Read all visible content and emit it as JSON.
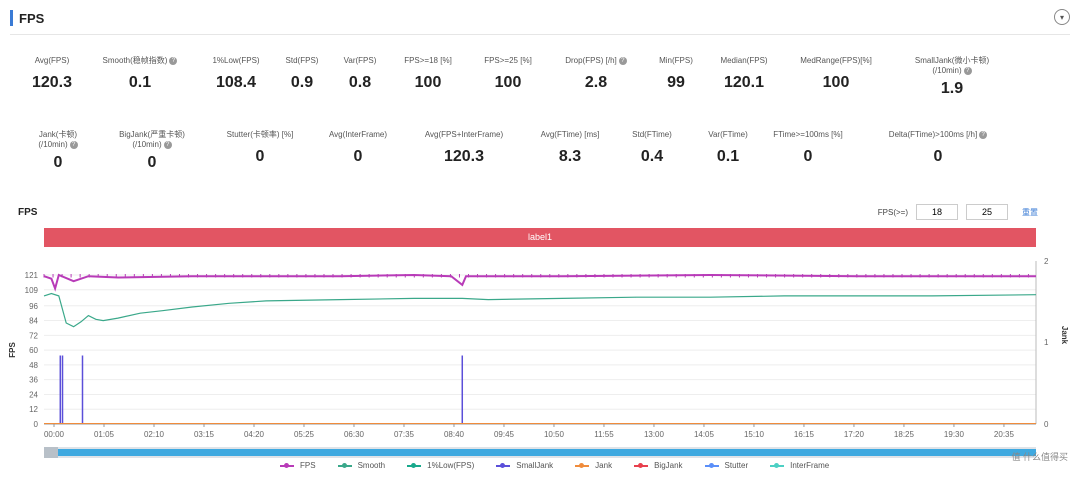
{
  "header": {
    "title": "FPS"
  },
  "stats_row1": [
    {
      "label": "Avg(FPS)",
      "value": "120.3",
      "help": false
    },
    {
      "label": "Smooth(稳帧指数)",
      "value": "0.1",
      "help": true
    },
    {
      "label": "1%Low(FPS)",
      "value": "108.4",
      "help": false
    },
    {
      "label": "Std(FPS)",
      "value": "0.9",
      "help": false
    },
    {
      "label": "Var(FPS)",
      "value": "0.8",
      "help": false
    },
    {
      "label": "FPS>=18 [%]",
      "value": "100",
      "help": false
    },
    {
      "label": "FPS>=25 [%]",
      "value": "100",
      "help": false
    },
    {
      "label": "Drop(FPS) [/h]",
      "value": "2.8",
      "help": true
    },
    {
      "label": "Min(FPS)",
      "value": "99",
      "help": false
    },
    {
      "label": "Median(FPS)",
      "value": "120.1",
      "help": false
    },
    {
      "label": "MedRange(FPS)[%]",
      "value": "100",
      "help": false
    },
    {
      "label": "SmallJank(微小卡顿)",
      "label2": "(/10min)",
      "value": "1.9",
      "help": true
    }
  ],
  "stats_row2": [
    {
      "label": "Jank(卡顿)",
      "label2": "(/10min)",
      "value": "0",
      "help": true
    },
    {
      "label": "BigJank(严重卡顿)",
      "label2": "(/10min)",
      "value": "0",
      "help": true
    },
    {
      "label": "Stutter(卡顿率) [%]",
      "value": "0",
      "help": false
    },
    {
      "label": "Avg(InterFrame)",
      "value": "0",
      "help": false
    },
    {
      "label": "Avg(FPS+InterFrame)",
      "value": "120.3",
      "help": false
    },
    {
      "label": "Avg(FTime) [ms]",
      "value": "8.3",
      "help": false
    },
    {
      "label": "Std(FTime)",
      "value": "0.4",
      "help": false
    },
    {
      "label": "Var(FTime)",
      "value": "0.1",
      "help": false
    },
    {
      "label": "FTime>=100ms [%]",
      "value": "0",
      "help": false
    },
    {
      "label": "Delta(FTime)>100ms [/h]",
      "value": "0",
      "help": true
    }
  ],
  "chart_controls": {
    "title": "FPS",
    "threshold_label": "FPS(>=)",
    "threshold1": "18",
    "threshold2": "25",
    "reset_label": "重置"
  },
  "chart_label_band": "label1",
  "brand": "值 什么值得买",
  "chart_data": {
    "type": "line",
    "title": "FPS",
    "ylabel": "FPS",
    "y2label": "Jank",
    "ylim": [
      0,
      121
    ],
    "y2lim": [
      0,
      2
    ],
    "yticks": [
      "0",
      "12",
      "24",
      "36",
      "48",
      "60",
      "72",
      "84",
      "96",
      "109",
      "121"
    ],
    "y2ticks": [
      "0",
      "1",
      "2"
    ],
    "xticks": [
      "00:00",
      "01:05",
      "02:10",
      "03:15",
      "04:20",
      "05:25",
      "06:30",
      "07:35",
      "08:40",
      "09:45",
      "10:50",
      "11:55",
      "13:00",
      "14:05",
      "15:10",
      "16:15",
      "17:20",
      "18:25",
      "19:30",
      "20:35"
    ],
    "x_range_s": [
      0,
      1340
    ],
    "series": [
      {
        "name": "FPS",
        "color": "#b83bb8",
        "points": [
          [
            0,
            120
          ],
          [
            10,
            118
          ],
          [
            15,
            110
          ],
          [
            20,
            121
          ],
          [
            40,
            116
          ],
          [
            60,
            120
          ],
          [
            100,
            119
          ],
          [
            200,
            120
          ],
          [
            400,
            120
          ],
          [
            500,
            121
          ],
          [
            550,
            120
          ],
          [
            565,
            113
          ],
          [
            570,
            120
          ],
          [
            700,
            120
          ],
          [
            900,
            121
          ],
          [
            1100,
            120
          ],
          [
            1340,
            120
          ]
        ]
      },
      {
        "name": "Smooth",
        "color": "#3aa88a",
        "points": [
          [
            0,
            104
          ],
          [
            10,
            106
          ],
          [
            20,
            104
          ],
          [
            30,
            82
          ],
          [
            40,
            79
          ],
          [
            50,
            83
          ],
          [
            60,
            88
          ],
          [
            70,
            85
          ],
          [
            80,
            84
          ],
          [
            100,
            86
          ],
          [
            130,
            90
          ],
          [
            160,
            92
          ],
          [
            200,
            95
          ],
          [
            250,
            98
          ],
          [
            300,
            100
          ],
          [
            400,
            101
          ],
          [
            500,
            102
          ],
          [
            565,
            102
          ],
          [
            600,
            101
          ],
          [
            700,
            102
          ],
          [
            800,
            103
          ],
          [
            900,
            103
          ],
          [
            1000,
            104
          ],
          [
            1100,
            104
          ],
          [
            1200,
            104
          ],
          [
            1340,
            105
          ]
        ]
      },
      {
        "name": "1%Low(FPS)",
        "color": "#18a98c",
        "points": []
      },
      {
        "name": "SmallJank",
        "color": "#5b4fd9",
        "spikes": [
          [
            22,
            1
          ],
          [
            25,
            1
          ],
          [
            52,
            1
          ],
          [
            565,
            1
          ]
        ]
      },
      {
        "name": "Jank",
        "color": "#f08c3c",
        "points": []
      },
      {
        "name": "BigJank",
        "color": "#e8404d",
        "points": []
      },
      {
        "name": "Stutter",
        "color": "#5b8ff9",
        "points": []
      },
      {
        "name": "InterFrame",
        "color": "#4dd0c4",
        "points": []
      }
    ]
  }
}
